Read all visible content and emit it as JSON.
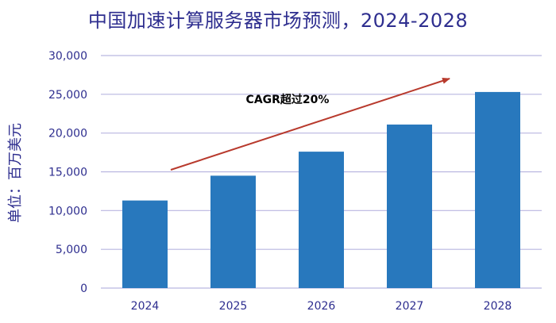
{
  "chart_data": {
    "type": "bar",
    "title": "中国加速计算服务器市场预测，2024-2028",
    "ylabel": "单位：百万美元",
    "xlabel": "",
    "categories": [
      "2024",
      "2025",
      "2026",
      "2027",
      "2028"
    ],
    "values": [
      11300,
      14500,
      17600,
      21100,
      25300
    ],
    "ylim": [
      0,
      30000
    ],
    "yticks": [
      0,
      5000,
      10000,
      15000,
      20000,
      25000,
      30000
    ],
    "ytick_labels": [
      "0",
      "5,000",
      "10,000",
      "15,000",
      "20,000",
      "25,000",
      "30,000"
    ],
    "grid": true,
    "annotation": {
      "text": "CAGR超过20%"
    },
    "colors": {
      "bar": "#2878bd",
      "arrow": "#b83a2d",
      "grid": "#b9b6e0",
      "axis_text": "#2e2e8f",
      "title": "#2e2e8f"
    }
  }
}
